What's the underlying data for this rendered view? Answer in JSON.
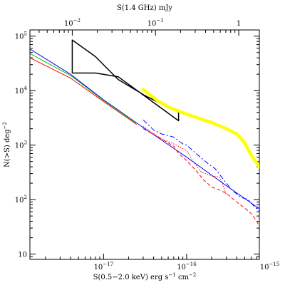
{
  "chart_data": {
    "type": "line",
    "title": "",
    "xlabel_top": "S(1.4 GHz)    mJy",
    "xlabel": {
      "main": "S(0.5−2.0 keV)    erg s",
      "exp1": "−1",
      "mid": " cm",
      "exp2": "−2"
    },
    "ylabel": {
      "main": "N(>S)    deg",
      "exp": "−2"
    },
    "x_scale": "log",
    "y_scale": "log",
    "xlim": [
      1.3e-18,
      7.5e-16
    ],
    "ylim": [
      8,
      130000
    ],
    "top_axis_range_mJy": [
      0.0031,
      1.77
    ],
    "grid": false,
    "legend": "none",
    "x_ticks": [
      {
        "value": 1e-17,
        "base": "10",
        "exp": "−17"
      },
      {
        "value": 1e-16,
        "base": "10",
        "exp": "−16"
      },
      {
        "value": 1e-15,
        "base": "10",
        "exp": "−15"
      }
    ],
    "top_ticks": [
      {
        "value": 0.01,
        "base": "10",
        "exp": "−2"
      },
      {
        "value": 0.1,
        "base": "10",
        "exp": "−1"
      },
      {
        "value": 1,
        "base": "1",
        "exp": ""
      }
    ],
    "y_ticks": [
      {
        "value": 10,
        "base": "10",
        "exp": ""
      },
      {
        "value": 100,
        "base": "10",
        "exp": "2"
      },
      {
        "value": 1000,
        "base": "10",
        "exp": "3"
      },
      {
        "value": 10000,
        "base": "10",
        "exp": "4"
      },
      {
        "value": 100000,
        "base": "10",
        "exp": "5"
      }
    ],
    "series": [
      {
        "style": "solid",
        "color": "#0000ff",
        "points": [
          [
            1.3e-18,
            58000
          ],
          [
            4e-18,
            20000
          ],
          [
            1e-17,
            6800
          ],
          [
            3e-17,
            2100
          ],
          [
            1e-16,
            600
          ],
          [
            3e-16,
            180
          ],
          [
            1e-15,
            50
          ]
        ]
      },
      {
        "style": "solid",
        "color": "#00c000",
        "points": [
          [
            1.3e-18,
            48000
          ],
          [
            4e-18,
            19000
          ],
          [
            1e-17,
            6600
          ],
          [
            2.5e-17,
            2500
          ]
        ]
      },
      {
        "style": "solid",
        "color": "#ff0000",
        "points": [
          [
            1.3e-18,
            40000
          ],
          [
            4e-18,
            17000
          ],
          [
            1e-17,
            6300
          ],
          [
            2.5e-17,
            2400
          ]
        ]
      },
      {
        "style": "solid",
        "color": "#000000",
        "points": [
          [
            4.2e-18,
            21000
          ],
          [
            4.2e-18,
            85000
          ],
          [
            8e-18,
            42000
          ],
          [
            1.5e-17,
            16000
          ],
          [
            3.2e-17,
            8000
          ],
          [
            8e-17,
            4000
          ],
          [
            8e-17,
            2800
          ],
          [
            1.5e-17,
            18000
          ],
          [
            8e-18,
            21000
          ],
          [
            4.2e-18,
            21000
          ]
        ]
      },
      {
        "style": "thick",
        "color": "#ffff00",
        "points": [
          [
            3e-17,
            10500
          ],
          [
            4.5e-17,
            6500
          ],
          [
            6e-17,
            5000
          ],
          [
            1e-16,
            3700
          ],
          [
            1.5e-16,
            3000
          ],
          [
            2e-16,
            2600
          ],
          [
            3e-16,
            2000
          ],
          [
            4e-16,
            1600
          ],
          [
            5e-16,
            1100
          ],
          [
            6e-16,
            650
          ],
          [
            7.5e-16,
            400
          ]
        ]
      },
      {
        "style": "dash-dot",
        "color": "#0000ff",
        "points": [
          [
            3e-17,
            2900
          ],
          [
            4e-17,
            1900
          ],
          [
            5e-17,
            1600
          ],
          [
            6e-17,
            1500
          ],
          [
            7e-17,
            1400
          ],
          [
            8e-17,
            1200
          ],
          [
            9e-17,
            1050
          ],
          [
            1e-16,
            1000
          ],
          [
            1.3e-16,
            700
          ],
          [
            1.8e-16,
            460
          ],
          [
            2.2e-16,
            370
          ],
          [
            2.8e-16,
            230
          ],
          [
            3.5e-16,
            150
          ],
          [
            4.5e-16,
            110
          ],
          [
            5.5e-16,
            100
          ],
          [
            6.5e-16,
            75
          ],
          [
            8e-16,
            57
          ],
          [
            1e-15,
            28
          ],
          [
            1.2e-15,
            12
          ],
          [
            2e-15,
            10
          ]
        ]
      },
      {
        "style": "dotted",
        "color": "#ff0000",
        "points": [
          [
            3e-17,
            2200
          ],
          [
            5e-17,
            1300
          ],
          [
            7e-17,
            1050
          ],
          [
            1e-16,
            800
          ],
          [
            1.2e-16,
            500
          ],
          [
            1.5e-16,
            320
          ],
          [
            2e-16,
            270
          ],
          [
            2.5e-16,
            260
          ],
          [
            2.8e-16,
            170
          ],
          [
            3e-16,
            120
          ]
        ]
      },
      {
        "style": "dashed",
        "color": "#ff0000",
        "points": [
          [
            3e-17,
            2000
          ],
          [
            5e-17,
            1300
          ],
          [
            7e-17,
            950
          ],
          [
            8e-17,
            700
          ],
          [
            1e-16,
            520
          ],
          [
            1.3e-16,
            340
          ],
          [
            1.6e-16,
            230
          ],
          [
            2e-16,
            170
          ],
          [
            2.5e-16,
            150
          ],
          [
            3e-16,
            130
          ],
          [
            4e-16,
            90
          ],
          [
            5e-16,
            70
          ],
          [
            6e-16,
            55
          ],
          [
            7e-16,
            40
          ],
          [
            8e-16,
            25
          ],
          [
            9e-16,
            16
          ],
          [
            1e-15,
            12
          ]
        ]
      }
    ]
  }
}
